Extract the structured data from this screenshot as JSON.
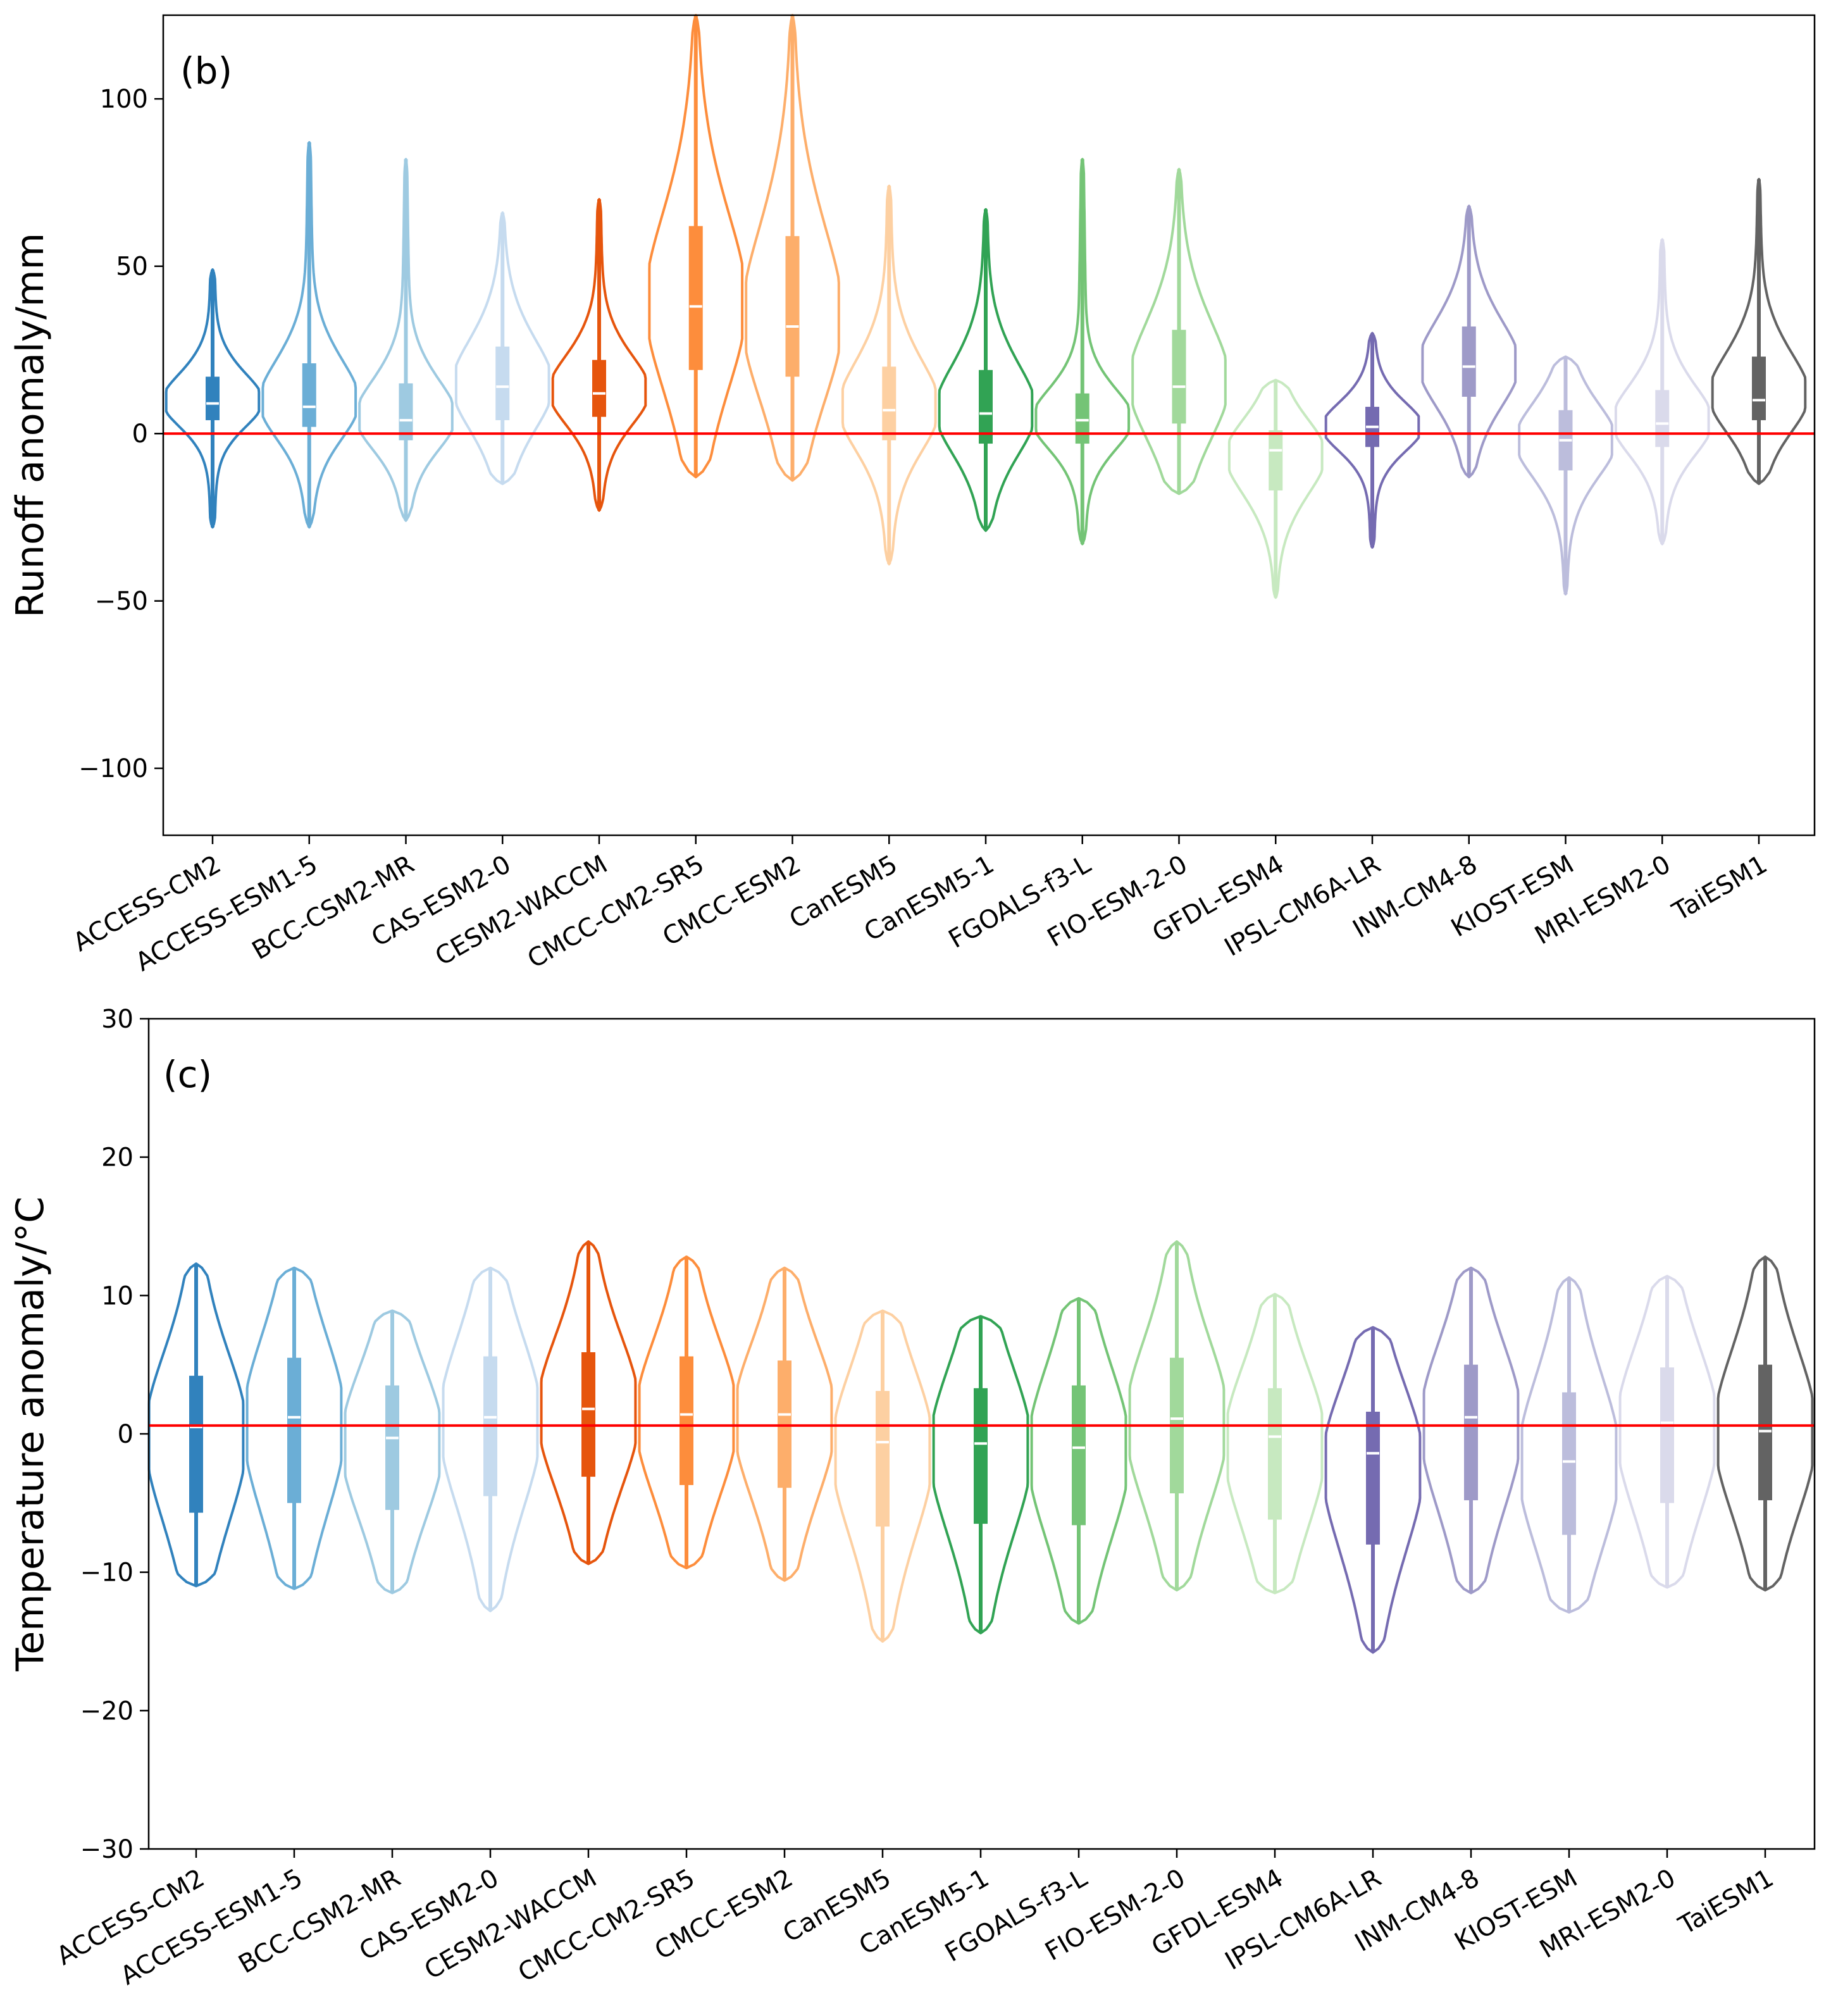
{
  "colors": {
    "reference_line": "#ff0000",
    "axes": "#000000",
    "median_marker": "#ffffff",
    "background": "#ffffff"
  },
  "chart_data": [
    {
      "type": "violin",
      "panel_label": "(b)",
      "title": "",
      "xlabel": "",
      "ylabel": "Runoff anomaly/mm",
      "ylim": [
        -120,
        125
      ],
      "yticks": [
        -100,
        -50,
        0,
        50,
        100
      ],
      "ytick_labels": [
        "−100",
        "−50",
        "0",
        "50",
        "100"
      ],
      "reference_line_y": 0,
      "grid": false,
      "categories": [
        "ACCESS-CM2",
        "ACCESS-ESM1-5",
        "BCC-CSM2-MR",
        "CAS-ESM2-0",
        "CESM2-WACCM",
        "CMCC-CM2-SR5",
        "CMCC-ESM2",
        "CanESM5",
        "CanESM5-1",
        "FGOALS-f3-L",
        "FIO-ESM-2-0",
        "GFDL-ESM4",
        "IPSL-CM6A-LR",
        "INM-CM4-8",
        "KIOST-ESM",
        "MRI-ESM2-0",
        "TaiESM1"
      ],
      "colors": [
        "#3182bd",
        "#6baed6",
        "#9ecae1",
        "#c6dbef",
        "#e6550d",
        "#fd8d3c",
        "#fdae6b",
        "#fdd0a2",
        "#31a354",
        "#74c476",
        "#a1d99b",
        "#c7e9c0",
        "#756bb1",
        "#9e9ac8",
        "#bcbddc",
        "#dadaeb",
        "#636363"
      ],
      "series": [
        {
          "name": "ACCESS-CM2",
          "min": -28,
          "q1": 4,
          "median": 9,
          "q3": 17,
          "max": 49
        },
        {
          "name": "ACCESS-ESM1-5",
          "min": -28,
          "q1": 2,
          "median": 8,
          "q3": 21,
          "max": 87
        },
        {
          "name": "BCC-CSM2-MR",
          "min": -26,
          "q1": -2,
          "median": 4,
          "q3": 15,
          "max": 82
        },
        {
          "name": "CAS-ESM2-0",
          "min": -15,
          "q1": 4,
          "median": 14,
          "q3": 26,
          "max": 66
        },
        {
          "name": "CESM2-WACCM",
          "min": -23,
          "q1": 5,
          "median": 12,
          "q3": 22,
          "max": 70
        },
        {
          "name": "CMCC-CM2-SR5",
          "min": -13,
          "q1": 19,
          "median": 38,
          "q3": 62,
          "max": 125
        },
        {
          "name": "CMCC-ESM2",
          "min": -14,
          "q1": 17,
          "median": 32,
          "q3": 59,
          "max": 125
        },
        {
          "name": "CanESM5",
          "min": -39,
          "q1": -2,
          "median": 7,
          "q3": 20,
          "max": 74
        },
        {
          "name": "CanESM5-1",
          "min": -29,
          "q1": -3,
          "median": 6,
          "q3": 19,
          "max": 67
        },
        {
          "name": "FGOALS-f3-L",
          "min": -33,
          "q1": -3,
          "median": 4,
          "q3": 12,
          "max": 82
        },
        {
          "name": "FIO-ESM-2-0",
          "min": -18,
          "q1": 3,
          "median": 14,
          "q3": 31,
          "max": 79
        },
        {
          "name": "GFDL-ESM4",
          "min": -49,
          "q1": -17,
          "median": -5,
          "q3": 1,
          "max": 16
        },
        {
          "name": "IPSL-CM6A-LR",
          "min": -34,
          "q1": -4,
          "median": 2,
          "q3": 8,
          "max": 30
        },
        {
          "name": "INM-CM4-8",
          "min": -13,
          "q1": 11,
          "median": 20,
          "q3": 32,
          "max": 68
        },
        {
          "name": "KIOST-ESM",
          "min": -48,
          "q1": -11,
          "median": -2,
          "q3": 7,
          "max": 23
        },
        {
          "name": "MRI-ESM2-0",
          "min": -33,
          "q1": -4,
          "median": 3,
          "q3": 13,
          "max": 58
        },
        {
          "name": "TaiESM1",
          "min": -15,
          "q1": 4,
          "median": 10,
          "q3": 23,
          "max": 76
        }
      ]
    },
    {
      "type": "violin",
      "panel_label": "(c)",
      "title": "",
      "xlabel": "",
      "ylabel": "Temperature anomaly/°C",
      "ylim": [
        -30,
        30
      ],
      "yticks": [
        -30,
        -20,
        -10,
        0,
        10,
        20,
        30
      ],
      "ytick_labels": [
        "−30",
        "−20",
        "−10",
        "0",
        "10",
        "20",
        "30"
      ],
      "reference_line_y": 0.6,
      "grid": false,
      "categories": [
        "ACCESS-CM2",
        "ACCESS-ESM1-5",
        "BCC-CSM2-MR",
        "CAS-ESM2-0",
        "CESM2-WACCM",
        "CMCC-CM2-SR5",
        "CMCC-ESM2",
        "CanESM5",
        "CanESM5-1",
        "FGOALS-f3-L",
        "FIO-ESM-2-0",
        "GFDL-ESM4",
        "IPSL-CM6A-LR",
        "INM-CM4-8",
        "KIOST-ESM",
        "MRI-ESM2-0",
        "TaiESM1"
      ],
      "colors": [
        "#3182bd",
        "#6baed6",
        "#9ecae1",
        "#c6dbef",
        "#e6550d",
        "#fd8d3c",
        "#fdae6b",
        "#fdd0a2",
        "#31a354",
        "#74c476",
        "#a1d99b",
        "#c7e9c0",
        "#756bb1",
        "#9e9ac8",
        "#bcbddc",
        "#dadaeb",
        "#636363"
      ],
      "series": [
        {
          "name": "ACCESS-CM2",
          "min": -11,
          "q1": -5.7,
          "median": 0.5,
          "q3": 4.2,
          "max": 12.3
        },
        {
          "name": "ACCESS-ESM1-5",
          "min": -11.2,
          "q1": -5,
          "median": 1.2,
          "q3": 5.5,
          "max": 12
        },
        {
          "name": "BCC-CSM2-MR",
          "min": -11.5,
          "q1": -5.5,
          "median": -0.3,
          "q3": 3.5,
          "max": 8.9
        },
        {
          "name": "CAS-ESM2-0",
          "min": -12.8,
          "q1": -4.5,
          "median": 1.2,
          "q3": 5.6,
          "max": 12
        },
        {
          "name": "CESM2-WACCM",
          "min": -9.4,
          "q1": -3.1,
          "median": 1.8,
          "q3": 5.9,
          "max": 13.9
        },
        {
          "name": "CMCC-CM2-SR5",
          "min": -9.7,
          "q1": -3.7,
          "median": 1.4,
          "q3": 5.6,
          "max": 12.8
        },
        {
          "name": "CMCC-ESM2",
          "min": -10.6,
          "q1": -3.9,
          "median": 1.4,
          "q3": 5.3,
          "max": 12
        },
        {
          "name": "CanESM5",
          "min": -15,
          "q1": -6.7,
          "median": -0.6,
          "q3": 3.1,
          "max": 8.9
        },
        {
          "name": "CanESM5-1",
          "min": -14.4,
          "q1": -6.5,
          "median": -0.7,
          "q3": 3.3,
          "max": 8.5
        },
        {
          "name": "FGOALS-f3-L",
          "min": -13.7,
          "q1": -6.6,
          "median": -1,
          "q3": 3.5,
          "max": 9.8
        },
        {
          "name": "FIO-ESM-2-0",
          "min": -11.3,
          "q1": -4.3,
          "median": 1.1,
          "q3": 5.5,
          "max": 13.9
        },
        {
          "name": "GFDL-ESM4",
          "min": -11.5,
          "q1": -6.2,
          "median": -0.2,
          "q3": 3.3,
          "max": 10.1
        },
        {
          "name": "IPSL-CM6A-LR",
          "min": -15.8,
          "q1": -8,
          "median": -1.4,
          "q3": 1.6,
          "max": 7.7
        },
        {
          "name": "INM-CM4-8",
          "min": -11.5,
          "q1": -4.8,
          "median": 1.2,
          "q3": 5,
          "max": 12
        },
        {
          "name": "KIOST-ESM",
          "min": -12.9,
          "q1": -7.3,
          "median": -2,
          "q3": 3,
          "max": 11.3
        },
        {
          "name": "MRI-ESM2-0",
          "min": -11.1,
          "q1": -5,
          "median": 0.8,
          "q3": 4.8,
          "max": 11.4
        },
        {
          "name": "TaiESM1",
          "min": -11.3,
          "q1": -4.8,
          "median": 0.2,
          "q3": 5,
          "max": 12.8
        }
      ]
    }
  ]
}
